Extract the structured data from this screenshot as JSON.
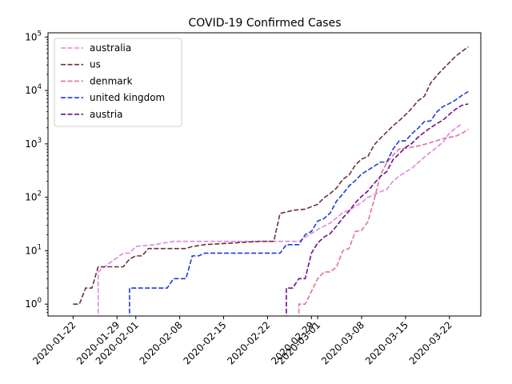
{
  "chart_data": {
    "type": "line",
    "title": "COVID-19 Confirmed Cases",
    "xlabel": "",
    "ylabel": "",
    "y_scale": "log",
    "ylim": [
      0.6,
      120000
    ],
    "xlim": [
      "2020-01-18",
      "2020-03-27"
    ],
    "grid": false,
    "legend_position": "upper-left",
    "x_ticks": [
      "2020-01-22",
      "2020-01-29",
      "2020-02-01",
      "2020-02-08",
      "2020-02-15",
      "2020-02-22",
      "2020-02-29",
      "2020-03-01",
      "2020-03-08",
      "2020-03-15",
      "2020-03-22"
    ],
    "y_ticks": [
      {
        "value": 1,
        "base": "10",
        "exp": "0"
      },
      {
        "value": 10,
        "base": "10",
        "exp": "1"
      },
      {
        "value": 100,
        "base": "10",
        "exp": "2"
      },
      {
        "value": 1000,
        "base": "10",
        "exp": "3"
      },
      {
        "value": 10000,
        "base": "10",
        "exp": "4"
      },
      {
        "value": 100000,
        "base": "10",
        "exp": "5"
      }
    ],
    "series": [
      {
        "name": "australia",
        "color": "#dd88dd",
        "points": [
          [
            "2020-01-26",
            0.5
          ],
          [
            "2020-01-26",
            4
          ],
          [
            "2020-01-27",
            5
          ],
          [
            "2020-01-30",
            9
          ],
          [
            "2020-01-31",
            9
          ],
          [
            "2020-02-01",
            12
          ],
          [
            "2020-02-04",
            13
          ],
          [
            "2020-02-07",
            15
          ],
          [
            "2020-02-27",
            15
          ],
          [
            "2020-03-01",
            25
          ],
          [
            "2020-03-03",
            33
          ],
          [
            "2020-03-05",
            52
          ],
          [
            "2020-03-06",
            57
          ],
          [
            "2020-03-08",
            80
          ],
          [
            "2020-03-09",
            100
          ],
          [
            "2020-03-10",
            112
          ],
          [
            "2020-03-11",
            127
          ],
          [
            "2020-03-12",
            140
          ],
          [
            "2020-03-13",
            200
          ],
          [
            "2020-03-14",
            250
          ],
          [
            "2020-03-16",
            350
          ],
          [
            "2020-03-18",
            565
          ],
          [
            "2020-03-20",
            870
          ],
          [
            "2020-03-21",
            1080
          ],
          [
            "2020-03-22",
            1600
          ],
          [
            "2020-03-24",
            2400
          ]
        ]
      },
      {
        "name": "us",
        "color": "#6e2f3f",
        "points": [
          [
            "2020-01-22",
            1
          ],
          [
            "2020-01-23",
            1
          ],
          [
            "2020-01-24",
            2
          ],
          [
            "2020-01-25",
            2
          ],
          [
            "2020-01-26",
            5
          ],
          [
            "2020-01-30",
            5
          ],
          [
            "2020-01-31",
            7
          ],
          [
            "2020-02-01",
            8
          ],
          [
            "2020-02-02",
            8
          ],
          [
            "2020-02-03",
            11
          ],
          [
            "2020-02-09",
            11
          ],
          [
            "2020-02-10",
            12
          ],
          [
            "2020-02-12",
            13
          ],
          [
            "2020-02-21",
            15
          ],
          [
            "2020-02-23",
            15
          ],
          [
            "2020-02-24",
            50
          ],
          [
            "2020-02-25",
            53
          ],
          [
            "2020-02-26",
            57
          ],
          [
            "2020-02-28",
            60
          ],
          [
            "2020-03-01",
            74
          ],
          [
            "2020-03-02",
            98
          ],
          [
            "2020-03-03",
            118
          ],
          [
            "2020-03-04",
            149
          ],
          [
            "2020-03-05",
            217
          ],
          [
            "2020-03-06",
            262
          ],
          [
            "2020-03-07",
            402
          ],
          [
            "2020-03-08",
            518
          ],
          [
            "2020-03-09",
            583
          ],
          [
            "2020-03-10",
            959
          ],
          [
            "2020-03-11",
            1281
          ],
          [
            "2020-03-12",
            1663
          ],
          [
            "2020-03-13",
            2179
          ],
          [
            "2020-03-14",
            2727
          ],
          [
            "2020-03-15",
            3499
          ],
          [
            "2020-03-16",
            4632
          ],
          [
            "2020-03-17",
            6421
          ],
          [
            "2020-03-18",
            7783
          ],
          [
            "2020-03-19",
            13677
          ],
          [
            "2020-03-20",
            19100
          ],
          [
            "2020-03-21",
            25489
          ],
          [
            "2020-03-22",
            33276
          ],
          [
            "2020-03-23",
            43847
          ],
          [
            "2020-03-24",
            53740
          ],
          [
            "2020-03-25",
            65778
          ]
        ]
      },
      {
        "name": "denmark",
        "color": "#e0719c",
        "points": [
          [
            "2020-02-27",
            0.5
          ],
          [
            "2020-02-27",
            1
          ],
          [
            "2020-02-28",
            1
          ],
          [
            "2020-03-01",
            3
          ],
          [
            "2020-03-02",
            4
          ],
          [
            "2020-03-03",
            4
          ],
          [
            "2020-03-04",
            5
          ],
          [
            "2020-03-05",
            10
          ],
          [
            "2020-03-06",
            11
          ],
          [
            "2020-03-07",
            23
          ],
          [
            "2020-03-08",
            24
          ],
          [
            "2020-03-09",
            35
          ],
          [
            "2020-03-10",
            90
          ],
          [
            "2020-03-11",
            262
          ],
          [
            "2020-03-12",
            442
          ],
          [
            "2020-03-13",
            615
          ],
          [
            "2020-03-14",
            801
          ],
          [
            "2020-03-15",
            827
          ],
          [
            "2020-03-16",
            864
          ],
          [
            "2020-03-17",
            914
          ],
          [
            "2020-03-18",
            977
          ],
          [
            "2020-03-19",
            1057
          ],
          [
            "2020-03-20",
            1151
          ],
          [
            "2020-03-21",
            1255
          ],
          [
            "2020-03-22",
            1326
          ],
          [
            "2020-03-23",
            1395
          ],
          [
            "2020-03-24",
            1572
          ],
          [
            "2020-03-25",
            1877
          ]
        ]
      },
      {
        "name": "united kingdom",
        "color": "#1f3bd6",
        "points": [
          [
            "2020-01-31",
            0.5
          ],
          [
            "2020-01-31",
            2
          ],
          [
            "2020-02-06",
            2
          ],
          [
            "2020-02-07",
            3
          ],
          [
            "2020-02-09",
            3
          ],
          [
            "2020-02-10",
            8
          ],
          [
            "2020-02-11",
            8
          ],
          [
            "2020-02-12",
            9
          ],
          [
            "2020-02-24",
            9
          ],
          [
            "2020-02-25",
            13
          ],
          [
            "2020-02-27",
            13
          ],
          [
            "2020-02-28",
            20
          ],
          [
            "2020-02-29",
            23
          ],
          [
            "2020-03-01",
            36
          ],
          [
            "2020-03-02",
            40
          ],
          [
            "2020-03-03",
            51
          ],
          [
            "2020-03-04",
            85
          ],
          [
            "2020-03-05",
            115
          ],
          [
            "2020-03-06",
            163
          ],
          [
            "2020-03-07",
            206
          ],
          [
            "2020-03-08",
            273
          ],
          [
            "2020-03-09",
            321
          ],
          [
            "2020-03-10",
            382
          ],
          [
            "2020-03-11",
            456
          ],
          [
            "2020-03-12",
            456
          ],
          [
            "2020-03-13",
            798
          ],
          [
            "2020-03-14",
            1140
          ],
          [
            "2020-03-15",
            1140
          ],
          [
            "2020-03-16",
            1543
          ],
          [
            "2020-03-17",
            1950
          ],
          [
            "2020-03-18",
            2626
          ],
          [
            "2020-03-19",
            2689
          ],
          [
            "2020-03-20",
            3983
          ],
          [
            "2020-03-21",
            5018
          ],
          [
            "2020-03-22",
            5683
          ],
          [
            "2020-03-23",
            6650
          ],
          [
            "2020-03-24",
            8077
          ],
          [
            "2020-03-25",
            9529
          ]
        ]
      },
      {
        "name": "austria",
        "color": "#6a0f8e",
        "points": [
          [
            "2020-02-25",
            0.5
          ],
          [
            "2020-02-25",
            2
          ],
          [
            "2020-02-26",
            2
          ],
          [
            "2020-02-27",
            3
          ],
          [
            "2020-02-28",
            3
          ],
          [
            "2020-02-29",
            9
          ],
          [
            "2020-03-01",
            14
          ],
          [
            "2020-03-02",
            18
          ],
          [
            "2020-03-03",
            21
          ],
          [
            "2020-03-04",
            29
          ],
          [
            "2020-03-05",
            41
          ],
          [
            "2020-03-06",
            55
          ],
          [
            "2020-03-07",
            79
          ],
          [
            "2020-03-08",
            104
          ],
          [
            "2020-03-09",
            131
          ],
          [
            "2020-03-10",
            182
          ],
          [
            "2020-03-11",
            246
          ],
          [
            "2020-03-12",
            302
          ],
          [
            "2020-03-13",
            504
          ],
          [
            "2020-03-14",
            655
          ],
          [
            "2020-03-15",
            860
          ],
          [
            "2020-03-16",
            1018
          ],
          [
            "2020-03-17",
            1332
          ],
          [
            "2020-03-18",
            1646
          ],
          [
            "2020-03-19",
            2013
          ],
          [
            "2020-03-20",
            2388
          ],
          [
            "2020-03-21",
            2814
          ],
          [
            "2020-03-22",
            3582
          ],
          [
            "2020-03-23",
            4474
          ],
          [
            "2020-03-24",
            5283
          ],
          [
            "2020-03-25",
            5588
          ]
        ]
      }
    ]
  }
}
